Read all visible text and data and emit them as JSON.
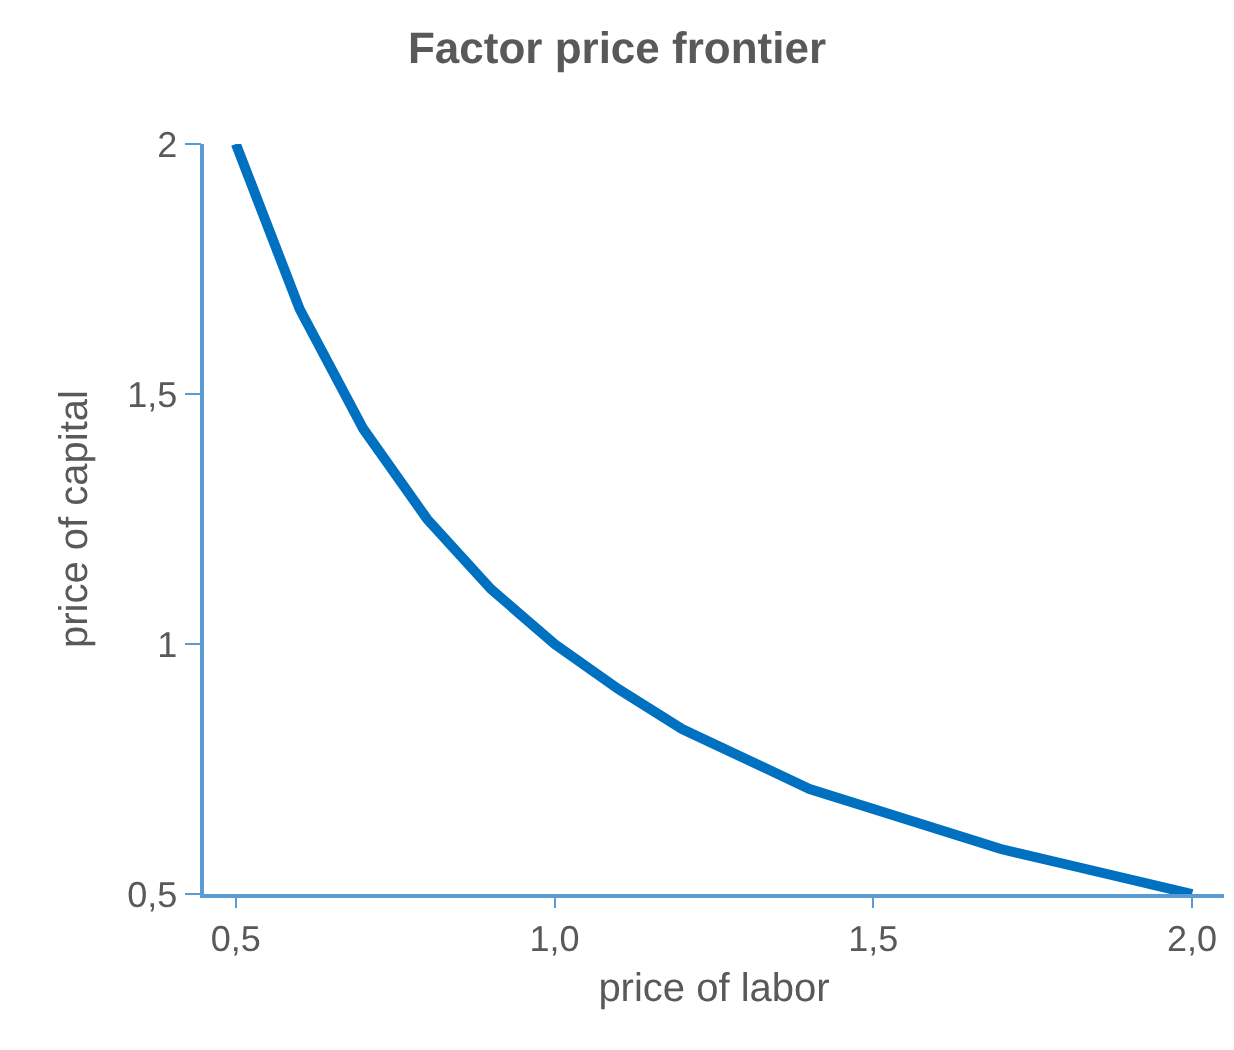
{
  "chart_data": {
    "type": "line",
    "title": "Factor price frontier",
    "xlabel": "price of labor",
    "ylabel": "price of capital",
    "x": [
      0.5,
      0.6,
      0.7,
      0.8,
      0.9,
      1.0,
      1.1,
      1.2,
      1.3,
      1.4,
      1.5,
      1.6,
      1.7,
      1.8,
      1.9,
      2.0
    ],
    "series": [
      {
        "color": "#0070c0",
        "values": [
          2.0,
          1.67,
          1.43,
          1.25,
          1.11,
          1.0,
          0.91,
          0.83,
          0.77,
          0.71,
          0.67,
          0.63,
          0.59,
          0.56,
          0.53,
          0.5
        ]
      }
    ],
    "xlim": [
      0.45,
      2.05
    ],
    "ylim": [
      0.5,
      2.0
    ],
    "xticks": [
      {
        "value": 0.5,
        "label": "0,5"
      },
      {
        "value": 1.0,
        "label": "1,0"
      },
      {
        "value": 1.5,
        "label": "1,5"
      },
      {
        "value": 2.0,
        "label": "2,0"
      }
    ],
    "yticks": [
      {
        "value": 0.5,
        "label": "0,5"
      },
      {
        "value": 1,
        "label": "1"
      },
      {
        "value": 1.5,
        "label": "1,5"
      },
      {
        "value": 2,
        "label": "2"
      }
    ],
    "marker": "none",
    "line_style": "solid"
  }
}
